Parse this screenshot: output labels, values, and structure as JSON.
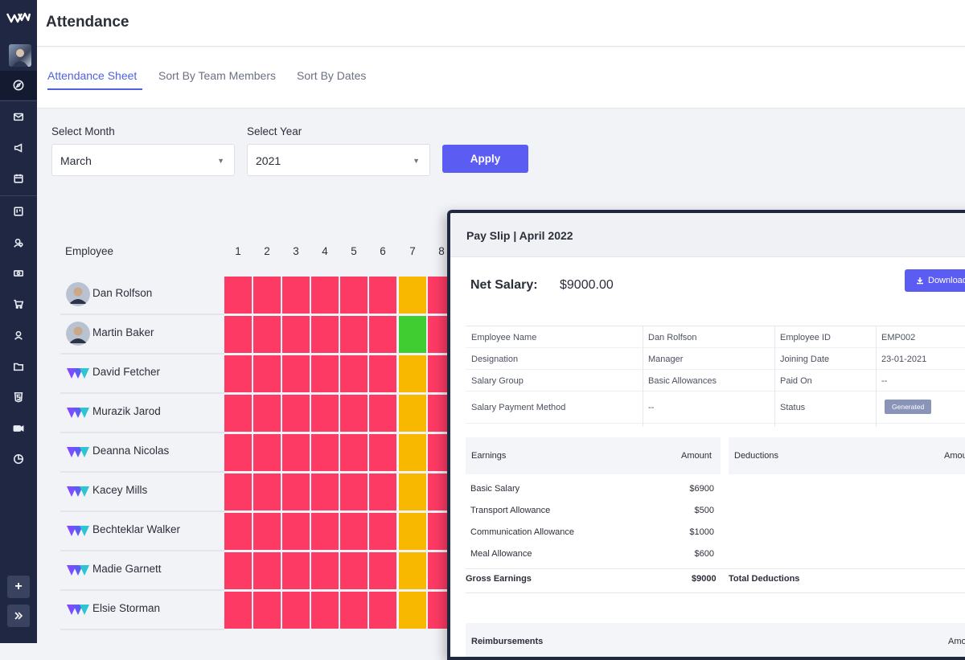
{
  "header": {
    "title": "Attendance"
  },
  "tabs": [
    {
      "label": "Attendance Sheet",
      "active": true
    },
    {
      "label": "Sort By Team Members",
      "active": false
    },
    {
      "label": "Sort By Dates",
      "active": false
    }
  ],
  "filters": {
    "month_label": "Select Month",
    "month_value": "March",
    "year_label": "Select Year",
    "year_value": "2021",
    "apply_label": "Apply"
  },
  "sheet": {
    "employee_header": "Employee",
    "days": [
      "1",
      "2",
      "3",
      "4",
      "5",
      "6",
      "7",
      "8"
    ],
    "status_colors": {
      "absent": "#fd3a64",
      "leave": "#f9b800",
      "present": "#3fcd31"
    },
    "employees": [
      {
        "name": "Dan Rolfson",
        "avatar": "photo",
        "days": [
          "absent",
          "absent",
          "absent",
          "absent",
          "absent",
          "absent",
          "leave",
          "absent"
        ]
      },
      {
        "name": "Martin Baker",
        "avatar": "photo",
        "days": [
          "absent",
          "absent",
          "absent",
          "absent",
          "absent",
          "absent",
          "present",
          "absent"
        ]
      },
      {
        "name": "David Fetcher",
        "avatar": "logo",
        "days": [
          "absent",
          "absent",
          "absent",
          "absent",
          "absent",
          "absent",
          "leave",
          "absent"
        ]
      },
      {
        "name": "Murazik Jarod",
        "avatar": "logo",
        "days": [
          "absent",
          "absent",
          "absent",
          "absent",
          "absent",
          "absent",
          "leave",
          "absent"
        ]
      },
      {
        "name": "Deanna Nicolas",
        "avatar": "logo",
        "days": [
          "absent",
          "absent",
          "absent",
          "absent",
          "absent",
          "absent",
          "leave",
          "absent"
        ]
      },
      {
        "name": "Kacey Mills",
        "avatar": "logo",
        "days": [
          "absent",
          "absent",
          "absent",
          "absent",
          "absent",
          "absent",
          "leave",
          "absent"
        ]
      },
      {
        "name": "Bechteklar Walker",
        "avatar": "logo",
        "days": [
          "absent",
          "absent",
          "absent",
          "absent",
          "absent",
          "absent",
          "leave",
          "absent"
        ]
      },
      {
        "name": "Madie Garnett",
        "avatar": "logo",
        "days": [
          "absent",
          "absent",
          "absent",
          "absent",
          "absent",
          "absent",
          "leave",
          "absent"
        ]
      },
      {
        "name": "Elsie Storman",
        "avatar": "logo",
        "days": [
          "absent",
          "absent",
          "absent",
          "absent",
          "absent",
          "absent",
          "leave",
          "absent"
        ]
      }
    ]
  },
  "payslip": {
    "title": "Pay Slip | April 2022",
    "net_label": "Net Salary:",
    "net_value": "$9000.00",
    "download_label": "Download",
    "info": {
      "employee_name_label": "Employee Name",
      "employee_name": "Dan Rolfson",
      "employee_id_label": "Employee ID",
      "employee_id": "EMP002",
      "designation_label": "Designation",
      "designation": "Manager",
      "joining_date_label": "Joining Date",
      "joining_date": "23-01-2021",
      "salary_group_label": "Salary Group",
      "salary_group": "Basic Allowances",
      "paid_on_label": "Paid On",
      "paid_on": "--",
      "payment_method_label": "Salary Payment Method",
      "payment_method": "--",
      "status_label": "Status",
      "status": "Generated"
    },
    "earnings_header": "Earnings",
    "amount_header": "Amount",
    "deductions_header": "Deductions",
    "deductions_amount_header": "Amou",
    "earnings": [
      {
        "name": "Basic Salary",
        "amount": "$6900"
      },
      {
        "name": "Transport Allowance",
        "amount": "$500"
      },
      {
        "name": "Communication Allowance",
        "amount": "$1000"
      },
      {
        "name": "Meal Allowance",
        "amount": "$600"
      }
    ],
    "gross_label": "Gross Earnings",
    "gross_value": "$9000",
    "total_deductions_label": "Total Deductions",
    "reimbursements_header": "Reimbursements",
    "reimbursements_amount_header": "Amo"
  },
  "sidebar": {
    "icons": [
      "compass-icon",
      "mail-icon",
      "megaphone-icon",
      "calendar-icon",
      "board-icon",
      "users-icon",
      "money-icon",
      "cart-icon",
      "user-icon",
      "folder-icon",
      "html5-icon",
      "video-icon",
      "pie-chart-icon"
    ]
  }
}
